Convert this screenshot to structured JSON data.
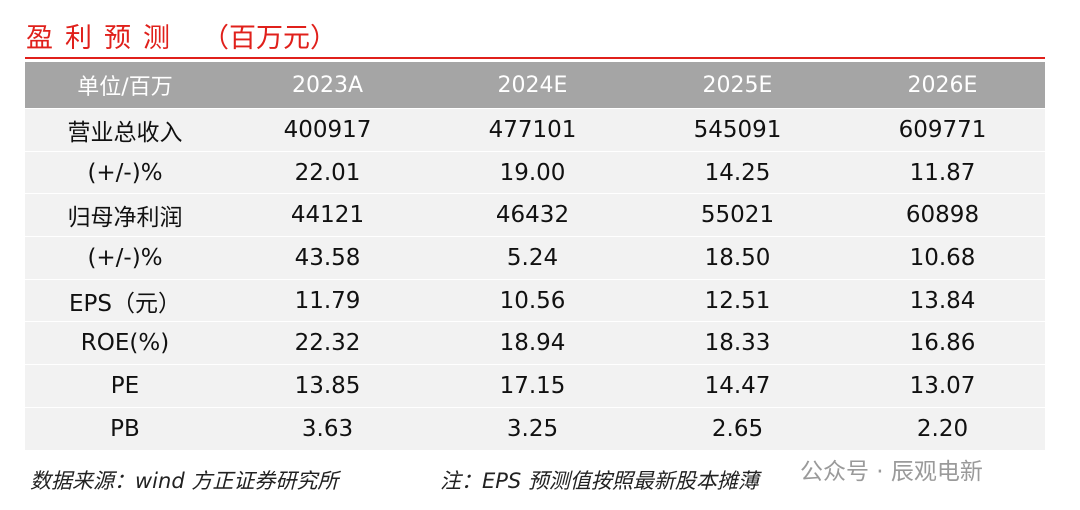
{
  "title": "盈利预测",
  "unit": "（百万元）",
  "table": {
    "header": [
      "单位/百万",
      "2023A",
      "2024E",
      "2025E",
      "2026E"
    ],
    "rows": [
      [
        "营业总收入",
        "400917",
        "477101",
        "545091",
        "609771"
      ],
      [
        "(+/-)%",
        "22.01",
        "19.00",
        "14.25",
        "11.87"
      ],
      [
        "归母净利润",
        "44121",
        "46432",
        "55021",
        "60898"
      ],
      [
        "(+/-)%",
        "43.58",
        "5.24",
        "18.50",
        "10.68"
      ],
      [
        "EPS（元）",
        "11.79",
        "10.56",
        "12.51",
        "13.84"
      ],
      [
        "ROE(%)",
        "22.32",
        "18.94",
        "18.33",
        "16.86"
      ],
      [
        "PE",
        "13.85",
        "17.15",
        "14.47",
        "13.07"
      ],
      [
        "PB",
        "3.63",
        "3.25",
        "2.65",
        "2.20"
      ]
    ]
  },
  "footer": {
    "source": "数据来源：wind 方正证券研究所",
    "note": "注：EPS 预测值按照最新股本摊薄"
  },
  "watermark": "公众号 · 辰观电新"
}
